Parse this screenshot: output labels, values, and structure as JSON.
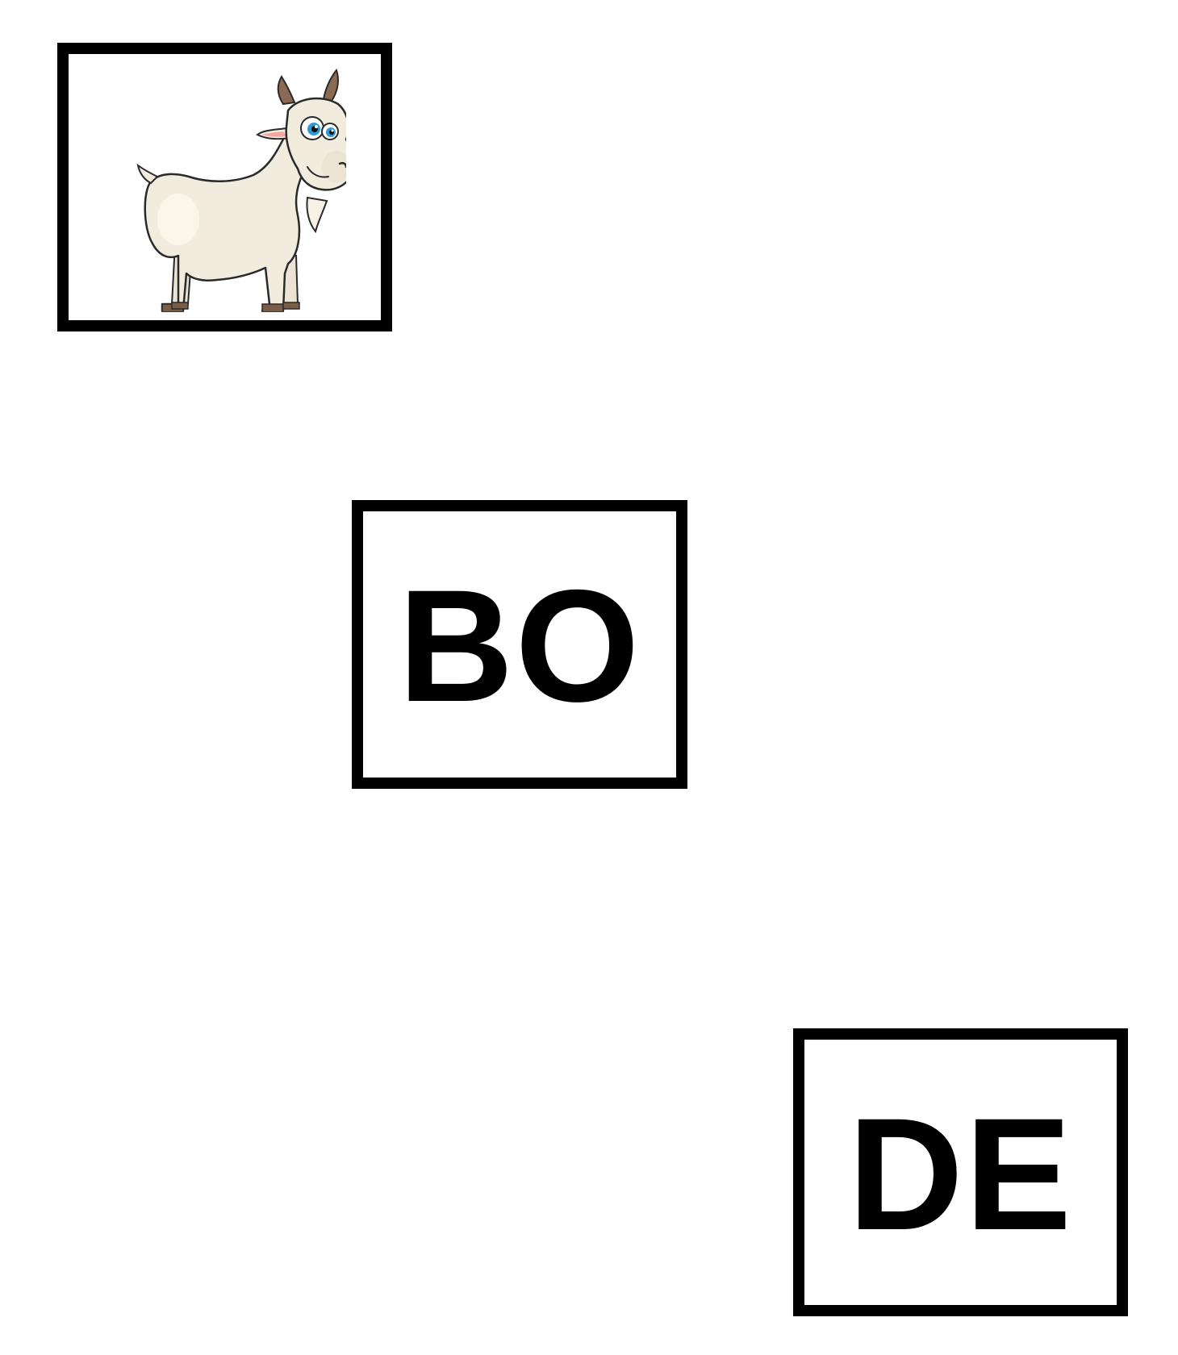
{
  "cards": {
    "picture": {
      "icon": "goat-illustration"
    },
    "syllables": [
      {
        "text": "BO"
      },
      {
        "text": "DE"
      }
    ]
  },
  "colors": {
    "border": "#000000",
    "background": "#ffffff",
    "goat_body": "#f1ecdd",
    "goat_horn": "#8a6a52",
    "goat_hoof": "#7a5c47",
    "goat_eye": "#2d9ad6",
    "goat_ear_inner": "#f2a9a0"
  }
}
